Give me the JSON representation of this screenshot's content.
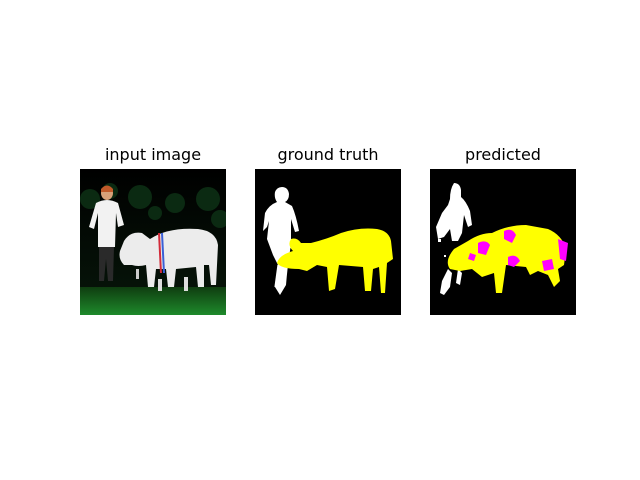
{
  "figure": {
    "panels": [
      {
        "title": "input image",
        "kind": "photo"
      },
      {
        "title": "ground truth",
        "kind": "segmentation-mask"
      },
      {
        "title": "predicted",
        "kind": "segmentation-mask"
      }
    ],
    "colors": {
      "background": "#000000",
      "person_class": "#ffffff",
      "cow_class": "#ffff00",
      "misclassified": "#ff00ff"
    }
  }
}
